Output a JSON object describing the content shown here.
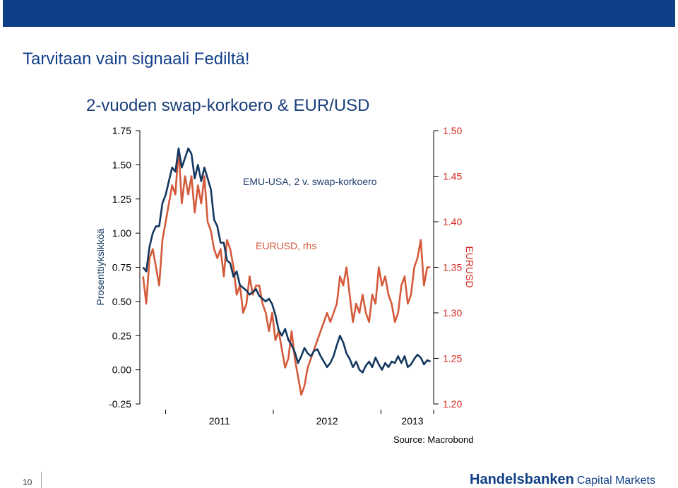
{
  "slide": {
    "title": "Tarvitaan vain signaali Fediltä!",
    "page_number": "10",
    "source": "Source: Macrobond",
    "logo_brand": "Handelsbanken",
    "logo_sub": "Capital Markets"
  },
  "colors": {
    "header_bar": "#0f3f87",
    "swap_series": "#13385f",
    "eurusd_series": "#d45a3b",
    "right_axis_text": "#d42a1f"
  },
  "chart_data": {
    "type": "line",
    "title": "2-vuoden swap-korkoero & EUR/USD",
    "ylabel": "Prosenttiyksikköä",
    "y2label": "EURUSD",
    "ylim": [
      -0.25,
      1.75
    ],
    "y2lim": [
      1.2,
      1.5
    ],
    "yticks": [
      "1.75",
      "1.50",
      "1.25",
      "1.00",
      "0.75",
      "0.50",
      "0.25",
      "0.00",
      "-0.25"
    ],
    "y2ticks": [
      "1.50",
      "1.45",
      "1.40",
      "1.35",
      "1.30",
      "1.25",
      "1.20"
    ],
    "xticks": [
      "2011",
      "2012",
      "2013"
    ],
    "grid": false,
    "series": [
      {
        "name": "EMU-USA, 2 v. swap-korkoero",
        "axis": "left",
        "x": [
          2010.79,
          2010.82,
          2010.85,
          2010.88,
          2010.91,
          2010.94,
          2010.97,
          2011.0,
          2011.03,
          2011.06,
          2011.09,
          2011.12,
          2011.15,
          2011.18,
          2011.21,
          2011.24,
          2011.27,
          2011.3,
          2011.33,
          2011.36,
          2011.39,
          2011.42,
          2011.45,
          2011.48,
          2011.51,
          2011.54,
          2011.57,
          2011.6,
          2011.63,
          2011.66,
          2011.69,
          2011.72,
          2011.75,
          2011.78,
          2011.81,
          2011.84,
          2011.87,
          2011.9,
          2011.93,
          2011.96,
          2011.99,
          2012.02,
          2012.05,
          2012.08,
          2012.11,
          2012.14,
          2012.17,
          2012.2,
          2012.23,
          2012.26,
          2012.29,
          2012.32,
          2012.35,
          2012.38,
          2012.41,
          2012.44,
          2012.47,
          2012.5,
          2012.53,
          2012.56,
          2012.59,
          2012.62,
          2012.65,
          2012.68,
          2012.71,
          2012.74,
          2012.77,
          2012.8,
          2012.83,
          2012.86,
          2012.89,
          2012.92,
          2012.95,
          2012.98,
          2013.01,
          2013.04,
          2013.07,
          2013.1,
          2013.13,
          2013.16,
          2013.19,
          2013.22,
          2013.25,
          2013.28,
          2013.31,
          2013.34,
          2013.37,
          2013.4,
          2013.43,
          2013.46
        ],
        "values": [
          0.75,
          0.72,
          0.9,
          1.0,
          1.05,
          1.05,
          1.22,
          1.28,
          1.38,
          1.48,
          1.45,
          1.62,
          1.48,
          1.55,
          1.62,
          1.58,
          1.4,
          1.5,
          1.38,
          1.48,
          1.4,
          1.32,
          1.1,
          1.05,
          0.93,
          0.93,
          0.8,
          0.78,
          0.68,
          0.72,
          0.62,
          0.6,
          0.58,
          0.55,
          0.57,
          0.59,
          0.54,
          0.52,
          0.5,
          0.52,
          0.48,
          0.4,
          0.29,
          0.25,
          0.3,
          0.22,
          0.18,
          0.13,
          0.05,
          0.1,
          0.16,
          0.12,
          0.1,
          0.14,
          0.15,
          0.1,
          0.06,
          0.02,
          0.05,
          0.1,
          0.18,
          0.25,
          0.2,
          0.12,
          0.08,
          0.02,
          0.06,
          0.0,
          -0.02,
          0.03,
          0.06,
          0.02,
          0.09,
          0.04,
          0.0,
          0.05,
          0.02,
          0.06,
          0.05,
          0.1,
          0.05,
          0.1,
          0.02,
          0.04,
          0.08,
          0.11,
          0.09,
          0.04,
          0.07,
          0.06
        ]
      },
      {
        "name": "EURUSD, rhs",
        "axis": "right",
        "x": [
          2010.79,
          2010.82,
          2010.85,
          2010.88,
          2010.91,
          2010.94,
          2010.97,
          2011.0,
          2011.03,
          2011.06,
          2011.09,
          2011.12,
          2011.15,
          2011.18,
          2011.21,
          2011.24,
          2011.27,
          2011.3,
          2011.33,
          2011.36,
          2011.39,
          2011.42,
          2011.45,
          2011.48,
          2011.51,
          2011.54,
          2011.57,
          2011.6,
          2011.63,
          2011.66,
          2011.69,
          2011.72,
          2011.75,
          2011.78,
          2011.81,
          2011.84,
          2011.87,
          2011.9,
          2011.93,
          2011.96,
          2011.99,
          2012.02,
          2012.05,
          2012.08,
          2012.11,
          2012.14,
          2012.17,
          2012.2,
          2012.23,
          2012.26,
          2012.29,
          2012.32,
          2012.35,
          2012.38,
          2012.41,
          2012.44,
          2012.47,
          2012.5,
          2012.53,
          2012.56,
          2012.59,
          2012.62,
          2012.65,
          2012.68,
          2012.71,
          2012.74,
          2012.77,
          2012.8,
          2012.83,
          2012.86,
          2012.89,
          2012.92,
          2012.95,
          2012.98,
          2013.01,
          2013.04,
          2013.07,
          2013.1,
          2013.13,
          2013.16,
          2013.19,
          2013.22,
          2013.25,
          2013.28,
          2013.31,
          2013.34,
          2013.37,
          2013.4,
          2013.43,
          2013.46
        ],
        "values": [
          1.34,
          1.31,
          1.36,
          1.37,
          1.35,
          1.33,
          1.38,
          1.4,
          1.42,
          1.44,
          1.43,
          1.48,
          1.42,
          1.45,
          1.43,
          1.45,
          1.41,
          1.44,
          1.42,
          1.45,
          1.4,
          1.39,
          1.37,
          1.36,
          1.37,
          1.34,
          1.38,
          1.37,
          1.35,
          1.32,
          1.33,
          1.3,
          1.31,
          1.34,
          1.32,
          1.33,
          1.33,
          1.31,
          1.3,
          1.28,
          1.3,
          1.27,
          1.28,
          1.26,
          1.24,
          1.25,
          1.28,
          1.25,
          1.23,
          1.21,
          1.22,
          1.24,
          1.25,
          1.26,
          1.27,
          1.28,
          1.29,
          1.3,
          1.29,
          1.3,
          1.31,
          1.34,
          1.33,
          1.35,
          1.32,
          1.29,
          1.31,
          1.3,
          1.32,
          1.3,
          1.29,
          1.32,
          1.31,
          1.35,
          1.33,
          1.34,
          1.32,
          1.31,
          1.29,
          1.3,
          1.33,
          1.34,
          1.31,
          1.32,
          1.35,
          1.36,
          1.38,
          1.33,
          1.35,
          1.35
        ]
      }
    ],
    "annotations": [
      "EMU-USA, 2 v. swap-korkoero",
      "EURUSD, rhs"
    ]
  }
}
